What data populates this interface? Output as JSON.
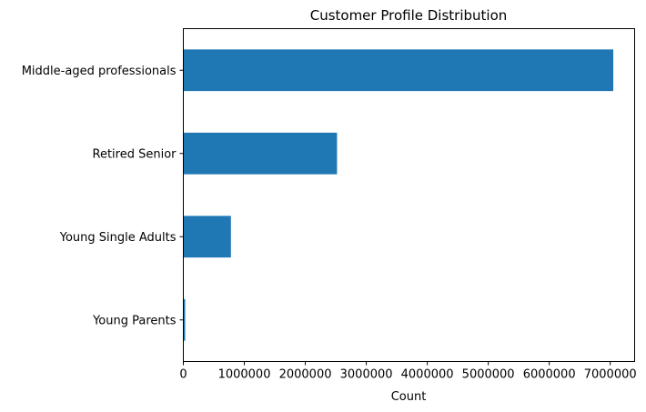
{
  "chart_data": {
    "type": "bar",
    "orientation": "horizontal",
    "title": "Customer Profile Distribution",
    "xlabel": "Count",
    "ylabel": "",
    "categories": [
      "Middle-aged professionals",
      "Retired Senior",
      "Young Single Adults",
      "Young Parents"
    ],
    "values": [
      7050000,
      2520000,
      780000,
      30000
    ],
    "xlim": [
      0,
      7400000
    ],
    "xticks": [
      0,
      1000000,
      2000000,
      3000000,
      4000000,
      5000000,
      6000000,
      7000000
    ],
    "xtick_labels": [
      "0",
      "1000000",
      "2000000",
      "3000000",
      "4000000",
      "5000000",
      "6000000",
      "7000000"
    ],
    "grid": false,
    "legend": "none",
    "bar_color": "#1f77b4"
  }
}
